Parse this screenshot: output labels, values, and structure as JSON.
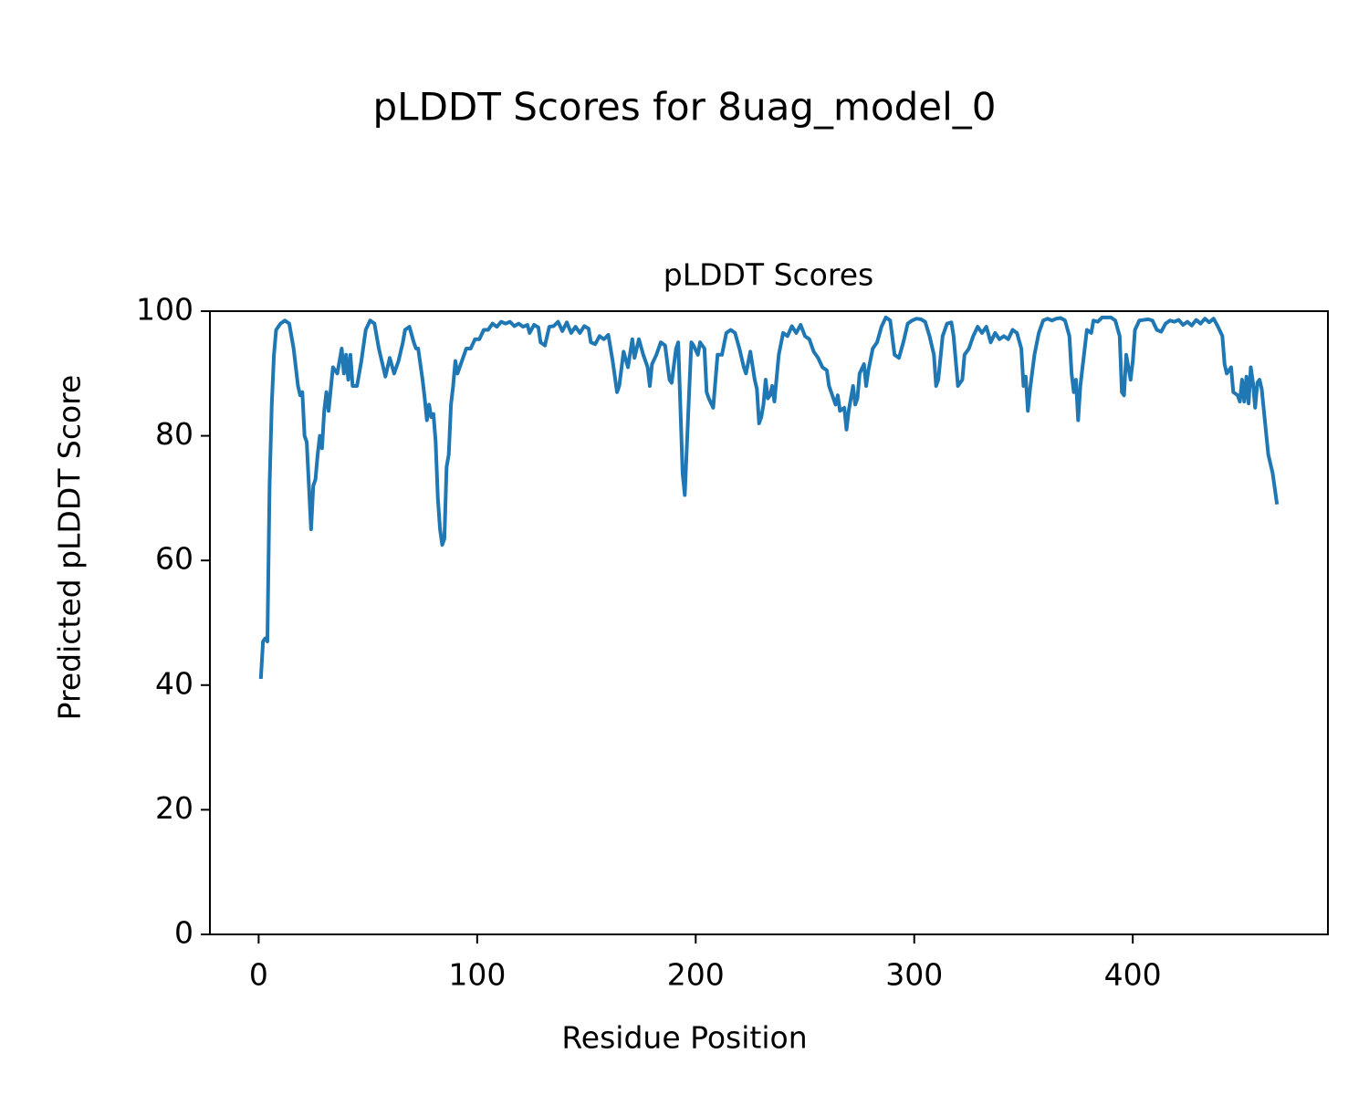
{
  "chart_data": {
    "type": "line",
    "suptitle": "pLDDT Scores for 8uag_model_0",
    "title": "pLDDT Scores",
    "xlabel": "Residue Position",
    "ylabel": "Predicted pLDDT Score",
    "xlim": [
      -22.3,
      489.3
    ],
    "ylim": [
      0,
      100
    ],
    "xticks": [
      0,
      100,
      200,
      300,
      400
    ],
    "yticks": [
      0,
      20,
      40,
      60,
      80,
      100
    ],
    "grid": false,
    "series": [
      {
        "color": "#1f77b4",
        "x": [
          1,
          2,
          3,
          4,
          5,
          6,
          7,
          8,
          10,
          12,
          14,
          16,
          18,
          19,
          20,
          21,
          22,
          23,
          24,
          25,
          26,
          27,
          28,
          29,
          30,
          31,
          32,
          34,
          36,
          38,
          39,
          40,
          41,
          42,
          43,
          45,
          47,
          49,
          51,
          53,
          55,
          57,
          58,
          60,
          62,
          64,
          66,
          67,
          69,
          71,
          72,
          73,
          75,
          76,
          77,
          78,
          79,
          80,
          81,
          82,
          83,
          84,
          85,
          86,
          87,
          88,
          89,
          90,
          91,
          93,
          95,
          97,
          99,
          101,
          103,
          105,
          107,
          109,
          111,
          113,
          115,
          117,
          119,
          121,
          123,
          124,
          126,
          128,
          129,
          131,
          133,
          135,
          137,
          139,
          141,
          143,
          145,
          147,
          149,
          151,
          152,
          154,
          156,
          158,
          160,
          162,
          164,
          165,
          167,
          169,
          171,
          172,
          174,
          176,
          178,
          179,
          180,
          182,
          184,
          186,
          188,
          189,
          191,
          192,
          194,
          195,
          197,
          198,
          199,
          201,
          202,
          204,
          205,
          206,
          208,
          210,
          212,
          214,
          216,
          218,
          220,
          222,
          223,
          225,
          227,
          228,
          229,
          230,
          231,
          232,
          233,
          234,
          235,
          236,
          238,
          240,
          242,
          244,
          246,
          248,
          250,
          252,
          254,
          256,
          258,
          260,
          261,
          263,
          264,
          265,
          266,
          268,
          269,
          270,
          272,
          273,
          274,
          275,
          277,
          278,
          279,
          281,
          283,
          285,
          287,
          289,
          291,
          293,
          295,
          297,
          299,
          301,
          303,
          305,
          307,
          309,
          310,
          311,
          313,
          315,
          317,
          318,
          320,
          321,
          322,
          323,
          325,
          327,
          329,
          331,
          333,
          335,
          337,
          339,
          341,
          343,
          345,
          347,
          349,
          350,
          351,
          352,
          353,
          355,
          357,
          359,
          361,
          363,
          365,
          367,
          369,
          371,
          372,
          373,
          374,
          375,
          376,
          377,
          379,
          381,
          382,
          384,
          386,
          388,
          390,
          392,
          394,
          395,
          396,
          397,
          399,
          400,
          401,
          403,
          405,
          407,
          409,
          411,
          413,
          415,
          417,
          419,
          421,
          423,
          425,
          427,
          429,
          431,
          433,
          435,
          437,
          439,
          441,
          442,
          443,
          445,
          446,
          448,
          449,
          450,
          451,
          452,
          453,
          454,
          455,
          456,
          457,
          458,
          459,
          460,
          462,
          464,
          466
        ],
        "values": [
          41,
          47,
          47.5,
          47,
          72,
          85,
          93,
          97,
          98,
          98.5,
          98,
          94,
          88,
          86.5,
          87,
          80,
          79,
          72,
          65,
          72,
          73,
          77,
          80,
          78,
          84,
          87,
          84,
          91,
          90,
          94,
          90,
          93,
          89,
          93,
          88,
          88,
          92,
          97,
          98.5,
          98,
          94,
          91,
          89.5,
          92.5,
          90,
          92,
          95,
          97,
          97.5,
          95,
          94,
          94,
          89,
          86,
          82.5,
          85,
          83,
          83.5,
          79,
          70,
          65,
          62.5,
          63.5,
          75,
          77,
          85,
          88,
          92,
          90,
          92,
          94,
          94,
          95.5,
          95.5,
          97,
          97,
          98,
          97.5,
          98.3,
          98,
          98.3,
          97.6,
          98,
          97.5,
          97.8,
          96.5,
          97.8,
          97.4,
          95,
          94.5,
          97.5,
          97.6,
          98.3,
          96.8,
          98.2,
          96.5,
          97.5,
          96.5,
          97.6,
          97.2,
          95,
          94.7,
          96,
          95.5,
          96.2,
          92,
          87,
          88,
          93.5,
          91,
          95.5,
          92.5,
          95.5,
          93,
          91,
          88,
          91.5,
          93,
          95,
          94.5,
          89,
          88.5,
          94,
          95,
          74,
          70.5,
          87,
          95,
          94.5,
          93,
          95,
          94,
          87,
          86,
          84.5,
          93,
          93,
          96.5,
          97,
          96.5,
          94,
          91,
          90,
          93.5,
          89,
          87.5,
          82,
          83,
          85,
          89,
          86,
          86.5,
          88,
          85.5,
          93,
          96.5,
          96,
          97.6,
          96.5,
          97.8,
          96,
          95.5,
          93.5,
          92.5,
          91,
          90.5,
          88,
          86,
          85,
          86.5,
          84,
          84.5,
          81,
          84,
          88,
          85,
          86,
          90,
          91.5,
          88,
          90.5,
          94,
          95,
          97.5,
          99,
          98.5,
          93,
          92.5,
          95,
          98,
          98.5,
          98.8,
          98.7,
          98.3,
          96,
          93,
          88,
          89,
          96,
          98,
          98.2,
          96,
          88,
          88.5,
          89,
          93,
          94,
          96,
          97.5,
          96.5,
          97.5,
          95,
          96.5,
          95.5,
          96,
          95.5,
          97,
          96.5,
          94,
          88,
          89.5,
          84,
          87.5,
          93,
          96.5,
          98.5,
          98.8,
          98.5,
          98.8,
          98.9,
          98.5,
          96,
          90,
          87,
          89,
          82.5,
          88,
          91,
          97,
          96.5,
          98.5,
          98.3,
          99,
          99,
          99,
          98.5,
          96,
          87,
          86.5,
          93,
          89,
          92,
          97,
          98.5,
          98.6,
          98.7,
          98.5,
          97,
          96.7,
          98,
          98.5,
          98.3,
          98.6,
          97.8,
          98.3,
          97.7,
          98.6,
          98,
          98.8,
          98.2,
          98.8,
          97.5,
          96,
          91.5,
          90,
          91,
          87,
          86.5,
          85.5,
          89,
          85.5,
          89.5,
          85.2,
          91,
          88.5,
          84.5,
          88.5,
          89,
          87.5,
          84,
          77,
          74,
          69
        ]
      }
    ]
  }
}
